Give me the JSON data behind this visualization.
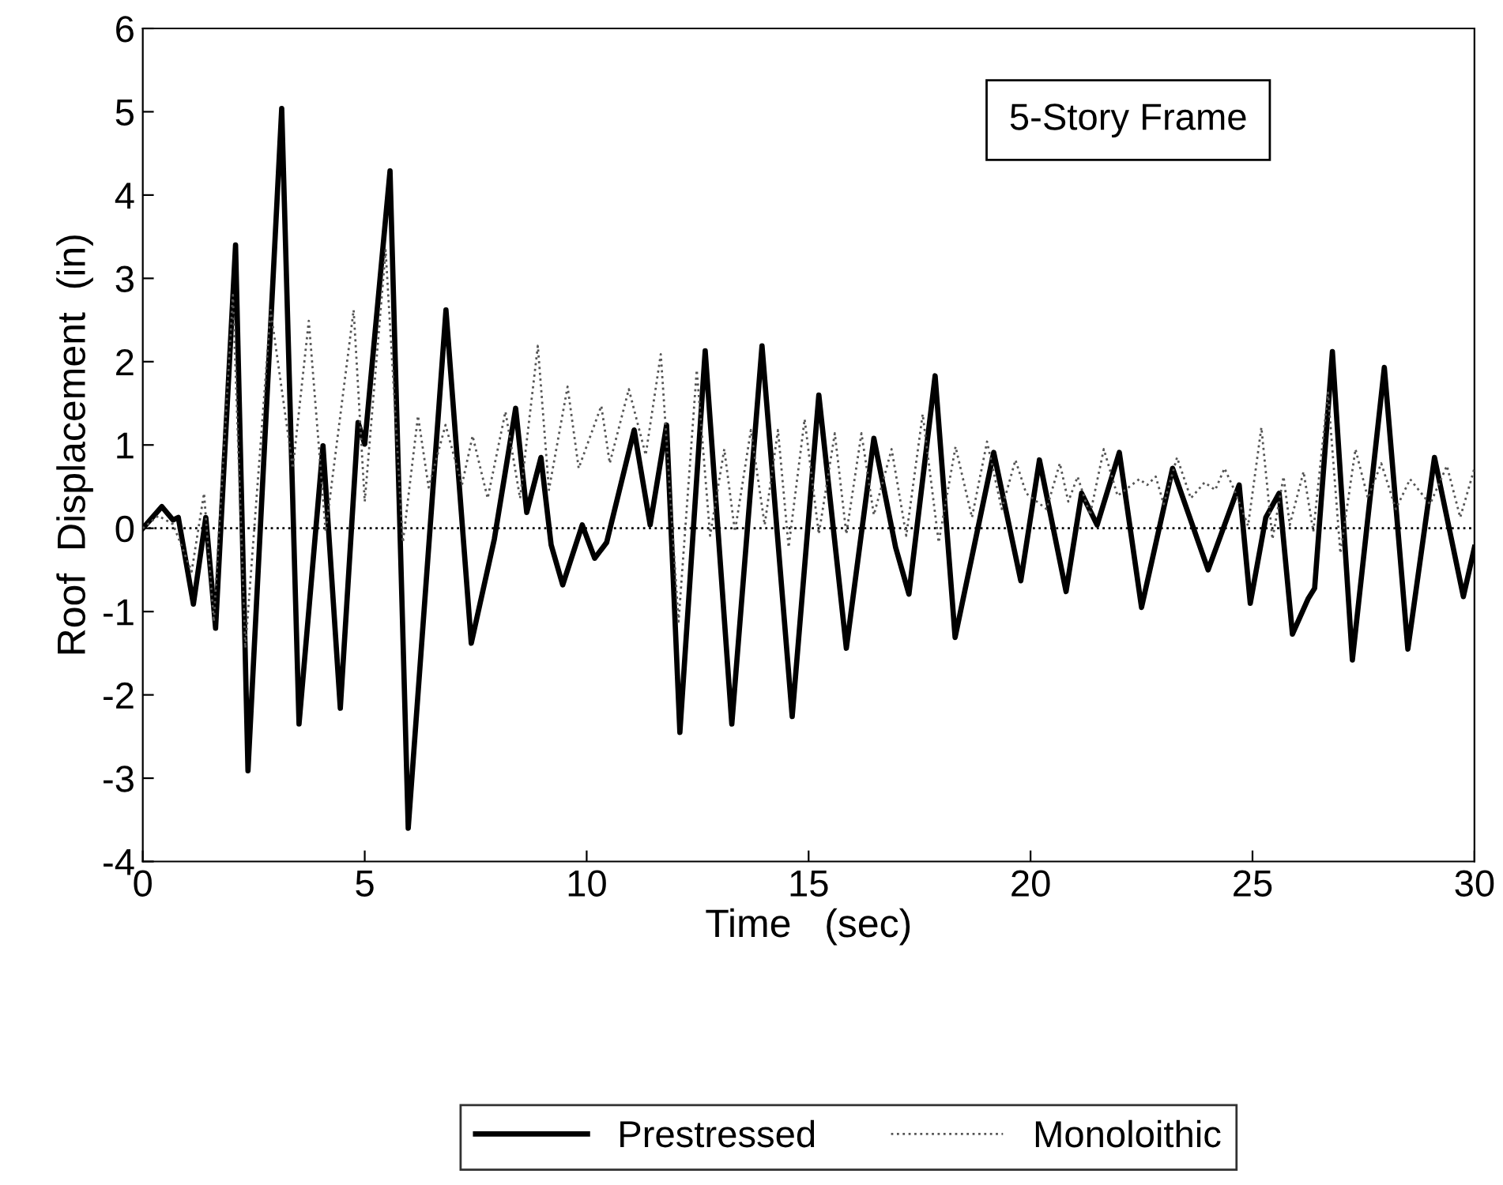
{
  "chart_data": {
    "type": "line",
    "xlabel": "Time   (sec)",
    "ylabel": "Roof  Displacement  (in)",
    "xlim": [
      0,
      30
    ],
    "ylim": [
      -4,
      6
    ],
    "xticks": [
      0,
      5,
      10,
      15,
      20,
      25,
      30
    ],
    "yticks": [
      -4,
      -3,
      -2,
      -1,
      0,
      1,
      2,
      3,
      4,
      5,
      6
    ],
    "grid": false,
    "legend": "bottom",
    "marker": "none",
    "annotations": [
      "5-Story Frame"
    ],
    "ref_lines": [
      {
        "axis": "y",
        "value": 0,
        "label": null,
        "color": "#000000",
        "line_style": "dotted"
      }
    ],
    "series": [
      {
        "name": "Prestressed",
        "color": "#000000",
        "line_style": "solid",
        "x": [
          0,
          0.43,
          0.68,
          0.8,
          1.14,
          1.42,
          1.64,
          2.09,
          2.37,
          3.13,
          3.52,
          4.06,
          4.45,
          4.85,
          5.0,
          5.57,
          5.98,
          6.83,
          7.4,
          7.92,
          8.4,
          8.65,
          8.97,
          9.2,
          9.46,
          9.9,
          10.18,
          10.45,
          11.07,
          11.43,
          11.8,
          12.1,
          12.67,
          13.27,
          13.95,
          14.63,
          15.23,
          15.85,
          16.47,
          16.96,
          17.26,
          17.85,
          18.3,
          19.17,
          19.78,
          20.2,
          20.8,
          21.15,
          21.5,
          22.0,
          22.5,
          23.2,
          24.0,
          24.7,
          24.95,
          25.3,
          25.6,
          25.9,
          26.25,
          26.4,
          26.8,
          27.25,
          27.97,
          28.5,
          29.1,
          29.75,
          30
        ],
        "values": [
          0,
          0.26,
          0.1,
          0.13,
          -0.91,
          0.13,
          -1.2,
          3.4,
          -2.91,
          5.04,
          -2.35,
          0.99,
          -2.16,
          1.27,
          1.01,
          4.29,
          -3.6,
          2.62,
          -1.38,
          -0.13,
          1.44,
          0.19,
          0.85,
          -0.2,
          -0.68,
          0.04,
          -0.36,
          -0.17,
          1.18,
          0.04,
          1.24,
          -2.45,
          2.13,
          -2.35,
          2.19,
          -2.26,
          1.6,
          -1.44,
          1.08,
          -0.23,
          -0.79,
          1.83,
          -1.31,
          0.91,
          -0.63,
          0.82,
          -0.76,
          0.42,
          0.04,
          0.91,
          -0.95,
          0.72,
          -0.5,
          0.52,
          -0.9,
          0.13,
          0.42,
          -1.27,
          -0.85,
          -0.72,
          2.12,
          -1.58,
          1.93,
          -1.45,
          0.85,
          -0.82,
          -0.23
        ]
      },
      {
        "name": "Monoloithic",
        "color": "#555555",
        "line_style": "dotted",
        "x": [
          0,
          0.35,
          0.68,
          1.1,
          1.38,
          1.6,
          2.03,
          2.31,
          2.88,
          3.38,
          3.74,
          4.12,
          4.75,
          5.0,
          5.47,
          5.86,
          6.2,
          6.44,
          6.82,
          7.19,
          7.43,
          7.77,
          8.17,
          8.5,
          8.9,
          9.15,
          9.57,
          9.82,
          10.33,
          10.52,
          10.95,
          11.33,
          11.67,
          12.07,
          12.48,
          12.78,
          13.1,
          13.34,
          13.7,
          14.01,
          14.31,
          14.55,
          14.91,
          15.23,
          15.59,
          15.85,
          16.19,
          16.47,
          16.87,
          17.2,
          17.57,
          17.93,
          18.31,
          18.68,
          19.02,
          19.35,
          19.66,
          19.9,
          20.36,
          20.66,
          20.85,
          21.06,
          21.34,
          21.65,
          21.96,
          22.45,
          22.63,
          22.82,
          23.0,
          23.3,
          23.61,
          23.92,
          24.16,
          24.37,
          24.59,
          24.9,
          25.2,
          25.45,
          25.7,
          25.84,
          26.15,
          26.37,
          26.7,
          26.98,
          27.32,
          27.6,
          27.9,
          28.23,
          28.55,
          29.0,
          29.38,
          29.68,
          30
        ],
        "values": [
          0,
          0.15,
          0.05,
          -0.52,
          0.42,
          -1.12,
          2.8,
          -1.44,
          2.62,
          0.72,
          2.49,
          -0.04,
          2.62,
          0.32,
          3.34,
          -0.17,
          1.35,
          0.49,
          1.24,
          0.52,
          1.11,
          0.36,
          1.4,
          0.36,
          2.19,
          0.46,
          1.7,
          0.72,
          1.47,
          0.78,
          1.67,
          0.88,
          2.09,
          -1.12,
          1.9,
          -0.09,
          0.95,
          -0.04,
          1.18,
          0.04,
          1.18,
          -0.23,
          1.31,
          -0.07,
          1.14,
          -0.07,
          1.14,
          0.16,
          0.95,
          -0.09,
          1.37,
          -0.17,
          0.98,
          0.13,
          1.04,
          0.23,
          0.82,
          0.42,
          0.23,
          0.78,
          0.32,
          0.62,
          0.16,
          0.95,
          0.39,
          0.59,
          0.52,
          0.62,
          0.29,
          0.85,
          0.36,
          0.55,
          0.46,
          0.72,
          0.46,
          0.03,
          1.21,
          -0.13,
          0.62,
          0.04,
          0.68,
          -0.04,
          1.63,
          -0.3,
          0.95,
          0.36,
          0.78,
          0.23,
          0.59,
          0.29,
          0.75,
          0.13,
          0.72
        ]
      }
    ]
  }
}
